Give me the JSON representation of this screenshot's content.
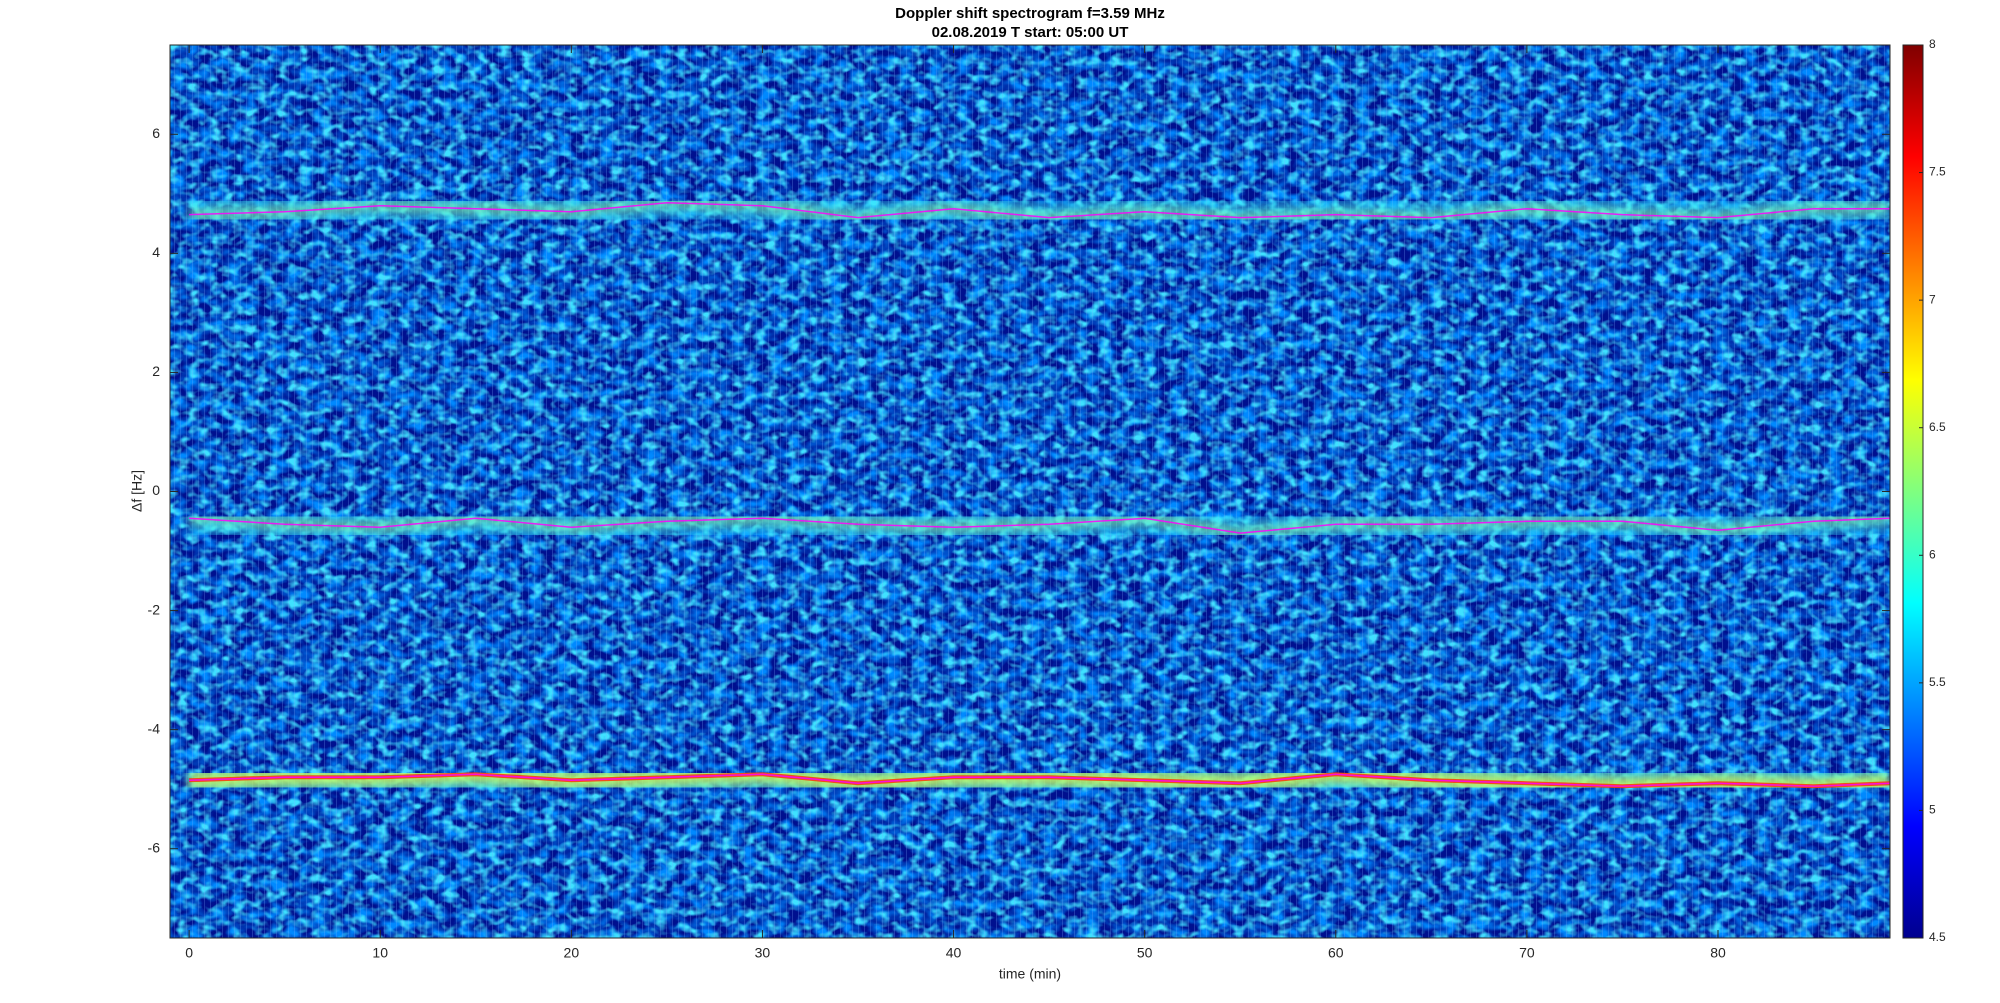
{
  "chart_data": {
    "type": "spectrogram",
    "title": "Doppler shift spectrogram f=3.59 MHz",
    "subtitle": "02.08.2019   T start: 05:00 UT",
    "x_label": "time (min)",
    "y_label": "Δf [Hz]",
    "xlim": [
      -1,
      89
    ],
    "xticks": [
      0,
      10,
      20,
      30,
      40,
      50,
      60,
      70,
      80
    ],
    "ylim": [
      -7.5,
      7.5
    ],
    "yticks": [
      -6,
      -4,
      -2,
      0,
      2,
      4,
      6
    ],
    "clim": [
      4.5,
      8
    ],
    "cticks": [
      4.5,
      5,
      5.5,
      6,
      6.5,
      7,
      7.5,
      8
    ],
    "x": [
      0,
      5,
      10,
      15,
      20,
      25,
      30,
      35,
      40,
      45,
      50,
      55,
      60,
      65,
      70,
      75,
      80,
      85,
      89
    ],
    "series": [
      {
        "color": "#ff00ff",
        "values": [
          4.65,
          4.7,
          4.8,
          4.75,
          4.7,
          4.85,
          4.8,
          4.6,
          4.75,
          4.6,
          4.7,
          4.6,
          4.65,
          4.6,
          4.75,
          4.65,
          4.6,
          4.75,
          4.75
        ]
      },
      {
        "color": "#ff00ff",
        "values": [
          -0.45,
          -0.55,
          -0.6,
          -0.45,
          -0.6,
          -0.5,
          -0.45,
          -0.55,
          -0.6,
          -0.55,
          -0.45,
          -0.7,
          -0.55,
          -0.55,
          -0.5,
          -0.5,
          -0.65,
          -0.5,
          -0.45
        ]
      },
      {
        "color": "#ff00ff",
        "values": [
          -4.85,
          -4.8,
          -4.8,
          -4.75,
          -4.85,
          -4.8,
          -4.75,
          -4.9,
          -4.8,
          -4.8,
          -4.85,
          -4.9,
          -4.75,
          -4.85,
          -4.9,
          -4.95,
          -4.9,
          -4.95,
          -4.9
        ]
      }
    ]
  }
}
